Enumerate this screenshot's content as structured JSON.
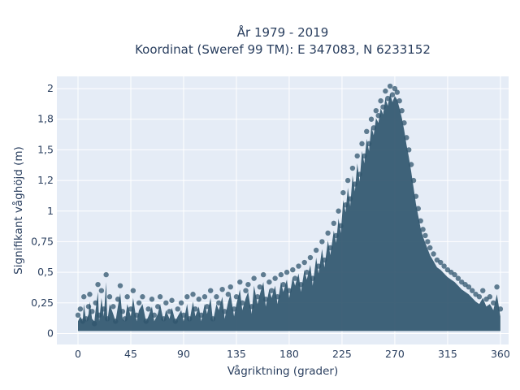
{
  "chart_data": {
    "type": "scatter",
    "title": "År 1979 - 2019",
    "subtitle": "Koordinat (Sweref 99 TM): E 347083, N 6233152",
    "xlabel": "Vågriktning (grader)",
    "ylabel": "Signifikant våghöjd (m)",
    "xlim": [
      -18,
      367
    ],
    "ylim": [
      -0.09,
      2.1
    ],
    "x_ticks": [
      {
        "value": 0,
        "label": "0"
      },
      {
        "value": 45,
        "label": "45"
      },
      {
        "value": 90,
        "label": "90"
      },
      {
        "value": 135,
        "label": "135"
      },
      {
        "value": 180,
        "label": "180"
      },
      {
        "value": 225,
        "label": "225"
      },
      {
        "value": 270,
        "label": "270"
      },
      {
        "value": 315,
        "label": "315"
      },
      {
        "value": 360,
        "label": "360"
      }
    ],
    "y_ticks": [
      {
        "value": 0,
        "label": "0"
      },
      {
        "value": 0.25,
        "label": "0,25"
      },
      {
        "value": 0.5,
        "label": "0,5"
      },
      {
        "value": 0.75,
        "label": "0,75"
      },
      {
        "value": 1,
        "label": "1"
      },
      {
        "value": 1.25,
        "label": "1,2"
      },
      {
        "value": 1.5,
        "label": "1,5"
      },
      {
        "value": 1.75,
        "label": "1,8"
      },
      {
        "value": 2,
        "label": "2"
      }
    ],
    "grid": true,
    "colors": {
      "marker": "#30566e",
      "plot_bg": "#e5ecf6",
      "grid": "#ffffff",
      "text": "#2a3f5f"
    },
    "series": [
      {
        "values_description_note": "",
        "points": [
          [
            0,
            0.15
          ],
          [
            2,
            0.2
          ],
          [
            4,
            0.1
          ],
          [
            5,
            0.3
          ],
          [
            7,
            0.12
          ],
          [
            9,
            0.22
          ],
          [
            10,
            0.32
          ],
          [
            12,
            0.18
          ],
          [
            14,
            0.08
          ],
          [
            15,
            0.25
          ],
          [
            17,
            0.4
          ],
          [
            18,
            0.15
          ],
          [
            20,
            0.35
          ],
          [
            22,
            0.2
          ],
          [
            24,
            0.48
          ],
          [
            25,
            0.12
          ],
          [
            27,
            0.3
          ],
          [
            30,
            0.22
          ],
          [
            32,
            0.1
          ],
          [
            34,
            0.28
          ],
          [
            36,
            0.39
          ],
          [
            38,
            0.18
          ],
          [
            40,
            0.12
          ],
          [
            42,
            0.3
          ],
          [
            45,
            0.2
          ],
          [
            47,
            0.35
          ],
          [
            50,
            0.15
          ],
          [
            52,
            0.25
          ],
          [
            55,
            0.3
          ],
          [
            58,
            0.1
          ],
          [
            60,
            0.2
          ],
          [
            63,
            0.28
          ],
          [
            65,
            0.15
          ],
          [
            68,
            0.22
          ],
          [
            70,
            0.3
          ],
          [
            73,
            0.12
          ],
          [
            75,
            0.25
          ],
          [
            78,
            0.18
          ],
          [
            80,
            0.27
          ],
          [
            83,
            0.1
          ],
          [
            85,
            0.2
          ],
          [
            88,
            0.25
          ],
          [
            90,
            0.15
          ],
          [
            93,
            0.3
          ],
          [
            95,
            0.12
          ],
          [
            98,
            0.32
          ],
          [
            100,
            0.2
          ],
          [
            103,
            0.28
          ],
          [
            105,
            0.15
          ],
          [
            108,
            0.3
          ],
          [
            110,
            0.22
          ],
          [
            113,
            0.35
          ],
          [
            115,
            0.12
          ],
          [
            118,
            0.3
          ],
          [
            120,
            0.25
          ],
          [
            123,
            0.36
          ],
          [
            125,
            0.18
          ],
          [
            128,
            0.32
          ],
          [
            130,
            0.38
          ],
          [
            133,
            0.2
          ],
          [
            135,
            0.3
          ],
          [
            138,
            0.42
          ],
          [
            140,
            0.25
          ],
          [
            143,
            0.35
          ],
          [
            145,
            0.4
          ],
          [
            148,
            0.22
          ],
          [
            150,
            0.45
          ],
          [
            153,
            0.3
          ],
          [
            155,
            0.38
          ],
          [
            158,
            0.48
          ],
          [
            160,
            0.28
          ],
          [
            163,
            0.42
          ],
          [
            165,
            0.35
          ],
          [
            168,
            0.45
          ],
          [
            170,
            0.3
          ],
          [
            173,
            0.48
          ],
          [
            175,
            0.4
          ],
          [
            178,
            0.5
          ],
          [
            180,
            0.35
          ],
          [
            183,
            0.52
          ],
          [
            185,
            0.45
          ],
          [
            188,
            0.55
          ],
          [
            190,
            0.4
          ],
          [
            193,
            0.58
          ],
          [
            195,
            0.5
          ],
          [
            198,
            0.62
          ],
          [
            200,
            0.45
          ],
          [
            203,
            0.68
          ],
          [
            205,
            0.55
          ],
          [
            208,
            0.75
          ],
          [
            210,
            0.6
          ],
          [
            213,
            0.82
          ],
          [
            215,
            0.7
          ],
          [
            218,
            0.9
          ],
          [
            220,
            0.8
          ],
          [
            222,
            1.0
          ],
          [
            224,
            0.88
          ],
          [
            226,
            1.15
          ],
          [
            228,
            1.05
          ],
          [
            230,
            1.25
          ],
          [
            232,
            1.1
          ],
          [
            234,
            1.35
          ],
          [
            236,
            1.22
          ],
          [
            238,
            1.45
          ],
          [
            240,
            1.3
          ],
          [
            242,
            1.55
          ],
          [
            244,
            1.45
          ],
          [
            246,
            1.65
          ],
          [
            248,
            1.55
          ],
          [
            250,
            1.75
          ],
          [
            252,
            1.68
          ],
          [
            254,
            1.82
          ],
          [
            256,
            1.78
          ],
          [
            258,
            1.9
          ],
          [
            260,
            1.85
          ],
          [
            262,
            1.98
          ],
          [
            264,
            1.92
          ],
          [
            266,
            2.02
          ],
          [
            268,
            1.95
          ],
          [
            270,
            2.0
          ],
          [
            272,
            1.97
          ],
          [
            274,
            1.9
          ],
          [
            276,
            1.82
          ],
          [
            278,
            1.72
          ],
          [
            280,
            1.6
          ],
          [
            282,
            1.5
          ],
          [
            284,
            1.38
          ],
          [
            286,
            1.25
          ],
          [
            288,
            1.12
          ],
          [
            290,
            1.02
          ],
          [
            292,
            0.92
          ],
          [
            294,
            0.85
          ],
          [
            296,
            0.8
          ],
          [
            298,
            0.75
          ],
          [
            300,
            0.7
          ],
          [
            303,
            0.65
          ],
          [
            306,
            0.6
          ],
          [
            309,
            0.58
          ],
          [
            312,
            0.55
          ],
          [
            315,
            0.52
          ],
          [
            318,
            0.5
          ],
          [
            321,
            0.48
          ],
          [
            324,
            0.45
          ],
          [
            327,
            0.42
          ],
          [
            330,
            0.4
          ],
          [
            333,
            0.38
          ],
          [
            336,
            0.35
          ],
          [
            339,
            0.32
          ],
          [
            342,
            0.3
          ],
          [
            345,
            0.35
          ],
          [
            348,
            0.28
          ],
          [
            351,
            0.3
          ],
          [
            354,
            0.25
          ],
          [
            357,
            0.38
          ],
          [
            360,
            0.2
          ]
        ]
      }
    ]
  }
}
